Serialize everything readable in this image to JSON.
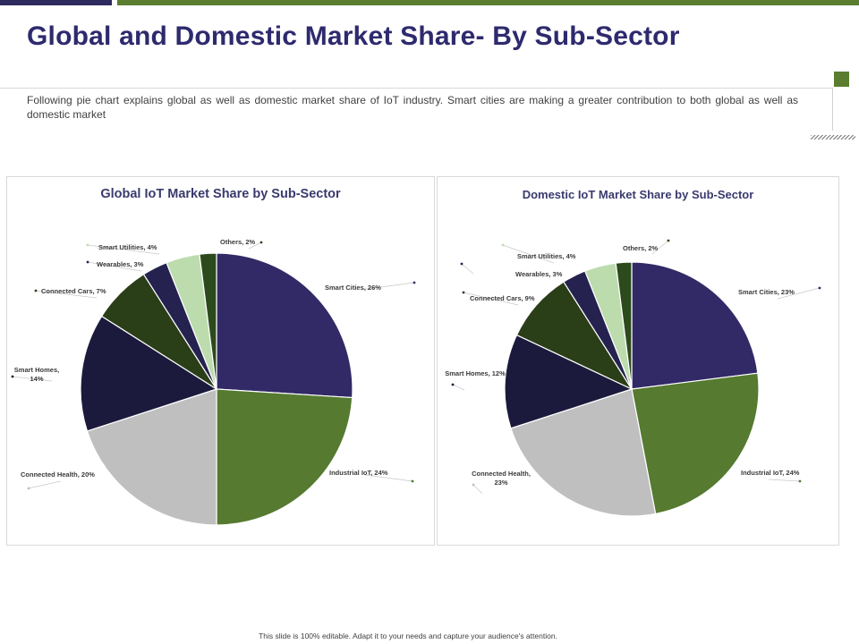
{
  "slide": {
    "title": "Global and Domestic Market Share- By Sub-Sector",
    "description": "Following pie chart explains global as well as domestic market share of IoT industry. Smart cities are making a greater contribution to both global as well as domestic market",
    "footer": "This slide is 100% editable. Adapt it to your needs and capture your audience's attention."
  },
  "colors": {
    "title": "#2e2a6e",
    "accent_dark": "#2e2a5e",
    "accent_green": "#5a7d30"
  },
  "chart_data": [
    {
      "type": "pie",
      "title": "Global IoT Market Share by Sub-Sector",
      "unit": "%",
      "slices": [
        {
          "name": "Smart Cities",
          "value": 26,
          "label": [
            "Smart Cities, 26%"
          ],
          "color": "#322a66"
        },
        {
          "name": "Industrial IoT",
          "value": 24,
          "label": [
            "Industrial IoT, 24%"
          ],
          "color": "#557a30"
        },
        {
          "name": "Connected Health",
          "value": 20,
          "label": [
            "Connected Health, 20%"
          ],
          "color": "#bfbfbf"
        },
        {
          "name": "Smart Homes",
          "value": 14,
          "label": [
            "Smart Homes,",
            "14%"
          ],
          "color": "#1c1a3c"
        },
        {
          "name": "Connected Cars",
          "value": 7,
          "label": [
            "Connected Cars, 7%"
          ],
          "color": "#2a3e18"
        },
        {
          "name": "Wearables",
          "value": 3,
          "label": [
            "Wearables, 3%"
          ],
          "color": "#252250"
        },
        {
          "name": "Smart Utilities",
          "value": 4,
          "label": [
            "Smart Utilities, 4%"
          ],
          "color": "#bcdcae"
        },
        {
          "name": "Others",
          "value": 2,
          "label": [
            "Others, 2%"
          ],
          "color": "#2c4a1c"
        }
      ]
    },
    {
      "type": "pie",
      "title": "Domestic IoT Market Share by Sub-Sector",
      "unit": "%",
      "slices": [
        {
          "name": "Smart Cities",
          "value": 23,
          "label": [
            "Smart Cities, 23%"
          ],
          "color": "#322a66"
        },
        {
          "name": "Industrial IoT",
          "value": 24,
          "label": [
            "Industrial IoT, 24%"
          ],
          "color": "#557a30"
        },
        {
          "name": "Connected Health",
          "value": 23,
          "label": [
            "Connected Health,",
            "23%"
          ],
          "color": "#bfbfbf"
        },
        {
          "name": "Smart Homes",
          "value": 12,
          "label": [
            "Smart Homes, 12%"
          ],
          "color": "#1c1a3c"
        },
        {
          "name": "Connected Cars",
          "value": 9,
          "label": [
            "Connected Cars, 9%"
          ],
          "color": "#2a3e18"
        },
        {
          "name": "Wearables",
          "value": 3,
          "label": [
            "Wearables, 3%"
          ],
          "color": "#252250"
        },
        {
          "name": "Smart Utilities",
          "value": 4,
          "label": [
            "Smart Utilities, 4%"
          ],
          "color": "#bcdcae"
        },
        {
          "name": "Others",
          "value": 2,
          "label": [
            "Others, 2%"
          ],
          "color": "#2c4a1c"
        }
      ]
    }
  ]
}
